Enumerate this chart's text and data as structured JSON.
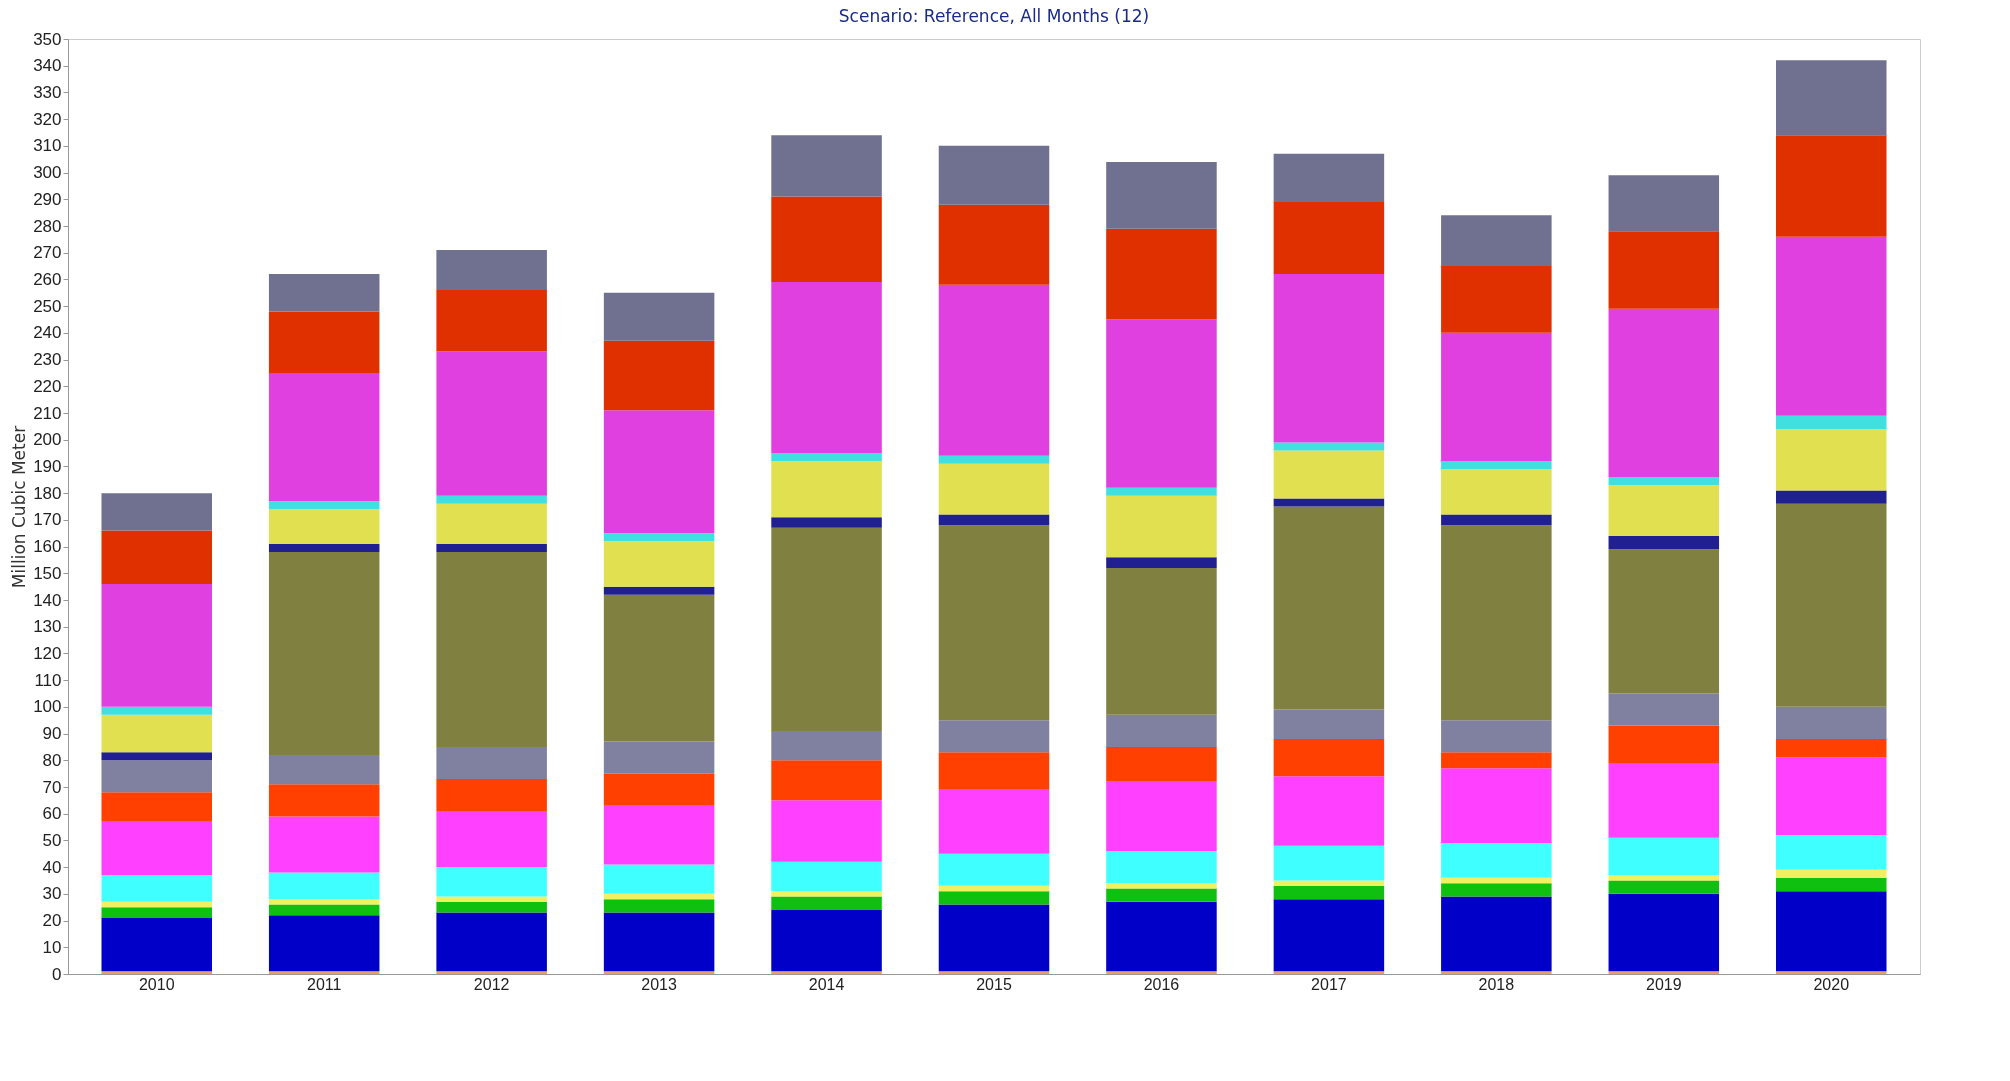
{
  "chart_data": {
    "type": "bar",
    "title": "Scenario: Reference,  All Months (12)",
    "ylabel": "Million Cubic Meter",
    "stacked": true,
    "legend": false,
    "grid": false,
    "categories": [
      "2010",
      "2011",
      "2012",
      "2013",
      "2014",
      "2015",
      "2016",
      "2017",
      "2018",
      "2019",
      "2020"
    ],
    "ylim": [
      0,
      350
    ],
    "yticks": [
      0,
      10,
      20,
      30,
      40,
      50,
      60,
      70,
      80,
      90,
      100,
      110,
      120,
      130,
      140,
      150,
      160,
      170,
      180,
      190,
      200,
      210,
      220,
      230,
      240,
      250,
      260,
      270,
      280,
      290,
      300,
      310,
      320,
      330,
      340,
      350
    ],
    "series": [
      {
        "color": "#e8a060",
        "values": [
          1,
          1,
          1,
          1,
          1,
          1,
          1,
          1,
          1,
          1,
          1
        ]
      },
      {
        "color": "#0000c8",
        "values": [
          20,
          21,
          22,
          22,
          23,
          25,
          26,
          27,
          28,
          29,
          30
        ]
      },
      {
        "color": "#10c010",
        "values": [
          4,
          4,
          4,
          5,
          5,
          5,
          5,
          5,
          5,
          5,
          5
        ]
      },
      {
        "color": "#f0f060",
        "values": [
          2,
          2,
          2,
          2,
          2,
          2,
          2,
          2,
          2,
          2,
          3
        ]
      },
      {
        "color": "#40ffff",
        "values": [
          10,
          10,
          11,
          11,
          11,
          12,
          12,
          13,
          13,
          14,
          13
        ]
      },
      {
        "color": "#ff40ff",
        "values": [
          20,
          21,
          21,
          22,
          23,
          24,
          26,
          26,
          28,
          28,
          29
        ]
      },
      {
        "color": "#ff4000",
        "values": [
          11,
          12,
          12,
          12,
          15,
          14,
          13,
          14,
          6,
          14,
          7
        ]
      },
      {
        "color": "#8080a0",
        "values": [
          12,
          11,
          12,
          12,
          11,
          12,
          12,
          11,
          12,
          12,
          12
        ]
      },
      {
        "color": "#808040",
        "values": [
          0,
          76,
          73,
          55,
          76,
          73,
          55,
          76,
          73,
          54,
          76
        ]
      },
      {
        "color": "#202090",
        "values": [
          3,
          3,
          3,
          3,
          4,
          4,
          4,
          3,
          4,
          5,
          5
        ]
      },
      {
        "color": "#e0e050",
        "values": [
          14,
          13,
          15,
          17,
          21,
          19,
          23,
          18,
          17,
          19,
          23
        ]
      },
      {
        "color": "#40e0e0",
        "values": [
          3,
          3,
          3,
          3,
          3,
          3,
          3,
          3,
          3,
          3,
          5
        ]
      },
      {
        "color": "#e040e0",
        "values": [
          46,
          48,
          54,
          46,
          64,
          64,
          63,
          63,
          48,
          63,
          67
        ]
      },
      {
        "color": "#e03000",
        "values": [
          20,
          23,
          23,
          26,
          32,
          30,
          34,
          27,
          25,
          29,
          38
        ]
      },
      {
        "color": "#707090",
        "values": [
          14,
          14,
          15,
          18,
          23,
          22,
          25,
          18,
          19,
          21,
          28
        ]
      }
    ]
  }
}
